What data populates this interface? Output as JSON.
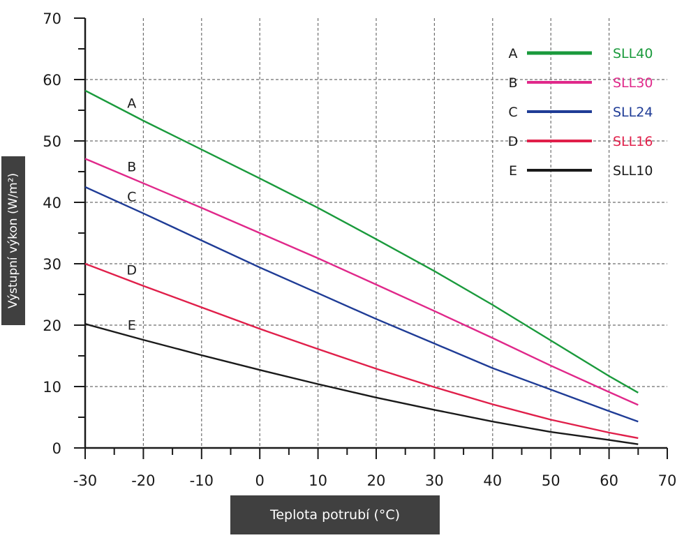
{
  "chart_data": {
    "type": "line",
    "xlabel": "Teplota potrubí (°C)",
    "ylabel": "Výstupní výkon (W/m²)",
    "xlim": [
      -30,
      70
    ],
    "ylim": [
      0,
      70
    ],
    "xticks": [
      "-30",
      "-20",
      "-10",
      "0",
      "10",
      "20",
      "30",
      "40",
      "50",
      "60",
      "70"
    ],
    "yticks": [
      "0",
      "10",
      "20",
      "30",
      "40",
      "50",
      "60",
      "70"
    ],
    "grid": true,
    "legend_position": "top-right",
    "series": [
      {
        "letter": "A",
        "name": "SLL40",
        "color": "#1a9a3c",
        "x": [
          -30,
          -20,
          -10,
          0,
          10,
          20,
          30,
          40,
          50,
          60,
          65
        ],
        "y": [
          58.2,
          53.3,
          48.6,
          43.9,
          39.1,
          34.0,
          28.8,
          23.3,
          17.5,
          11.7,
          9.0
        ]
      },
      {
        "letter": "B",
        "name": "SLL30",
        "color": "#e0288a",
        "x": [
          -30,
          -20,
          -10,
          0,
          10,
          20,
          30,
          40,
          50,
          60,
          65
        ],
        "y": [
          47.1,
          43.1,
          39.1,
          35.0,
          30.9,
          26.6,
          22.3,
          17.9,
          13.4,
          9.1,
          7.0
        ]
      },
      {
        "letter": "C",
        "name": "SLL24",
        "color": "#1f3c96",
        "x": [
          -30,
          -20,
          -10,
          0,
          10,
          20,
          30,
          40,
          50,
          60,
          65
        ],
        "y": [
          42.5,
          38.2,
          33.8,
          29.4,
          25.2,
          21.0,
          17.0,
          13.0,
          9.5,
          6.0,
          4.3
        ]
      },
      {
        "letter": "D",
        "name": "SLL16",
        "color": "#e01f4a",
        "x": [
          -30,
          -20,
          -10,
          0,
          10,
          20,
          30,
          40,
          50,
          60,
          65
        ],
        "y": [
          30.0,
          26.4,
          22.9,
          19.4,
          16.1,
          12.9,
          9.9,
          7.1,
          4.6,
          2.5,
          1.6
        ]
      },
      {
        "letter": "E",
        "name": "SLL10",
        "color": "#1a1a1a",
        "x": [
          -30,
          -20,
          -10,
          0,
          10,
          20,
          30,
          40,
          50,
          60,
          65
        ],
        "y": [
          20.2,
          17.6,
          15.1,
          12.7,
          10.4,
          8.2,
          6.2,
          4.3,
          2.6,
          1.3,
          0.6
        ]
      }
    ]
  }
}
